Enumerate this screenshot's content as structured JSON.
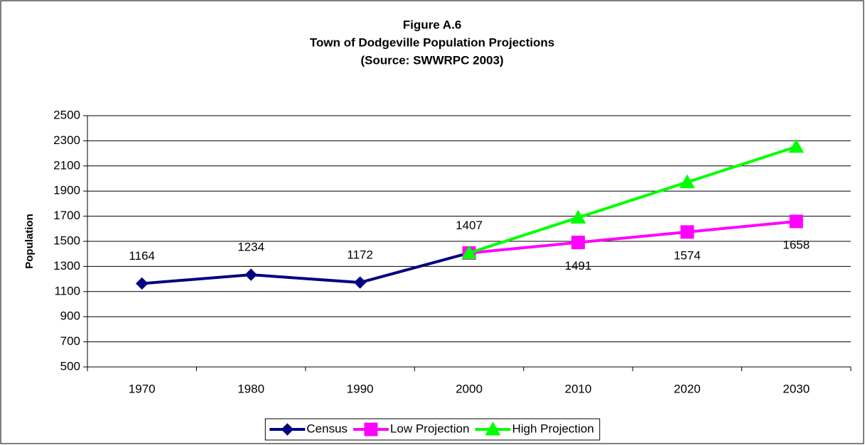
{
  "chart_data": {
    "type": "line",
    "title": [
      "Figure A.6",
      "Town of Dodgeville Population Projections",
      "(Source:  SWWRPC 2003)"
    ],
    "y_label": "Population",
    "categories": [
      "1970",
      "1980",
      "1990",
      "2000",
      "2010",
      "2020",
      "2030"
    ],
    "series": [
      {
        "name": "Census",
        "color": "#000080",
        "marker": "diamond",
        "label_position": "above",
        "values": [
          1164,
          1234,
          1172,
          1407,
          null,
          null,
          null
        ]
      },
      {
        "name": "Low Projection",
        "color": "#ff00ff",
        "marker": "square",
        "label_position": "below",
        "values": [
          null,
          null,
          null,
          1407,
          1491,
          1574,
          1658
        ]
      },
      {
        "name": "High Projection",
        "color": "#00ff00",
        "marker": "triangle",
        "label_position": "above",
        "values": [
          null,
          null,
          null,
          1407,
          1689,
          1971,
          2253
        ]
      }
    ],
    "ylim": [
      500,
      2500
    ],
    "yticks": [
      500,
      700,
      900,
      1100,
      1300,
      1500,
      1700,
      1900,
      2100,
      2300,
      2500
    ],
    "grid": true,
    "legend": "bottom"
  }
}
